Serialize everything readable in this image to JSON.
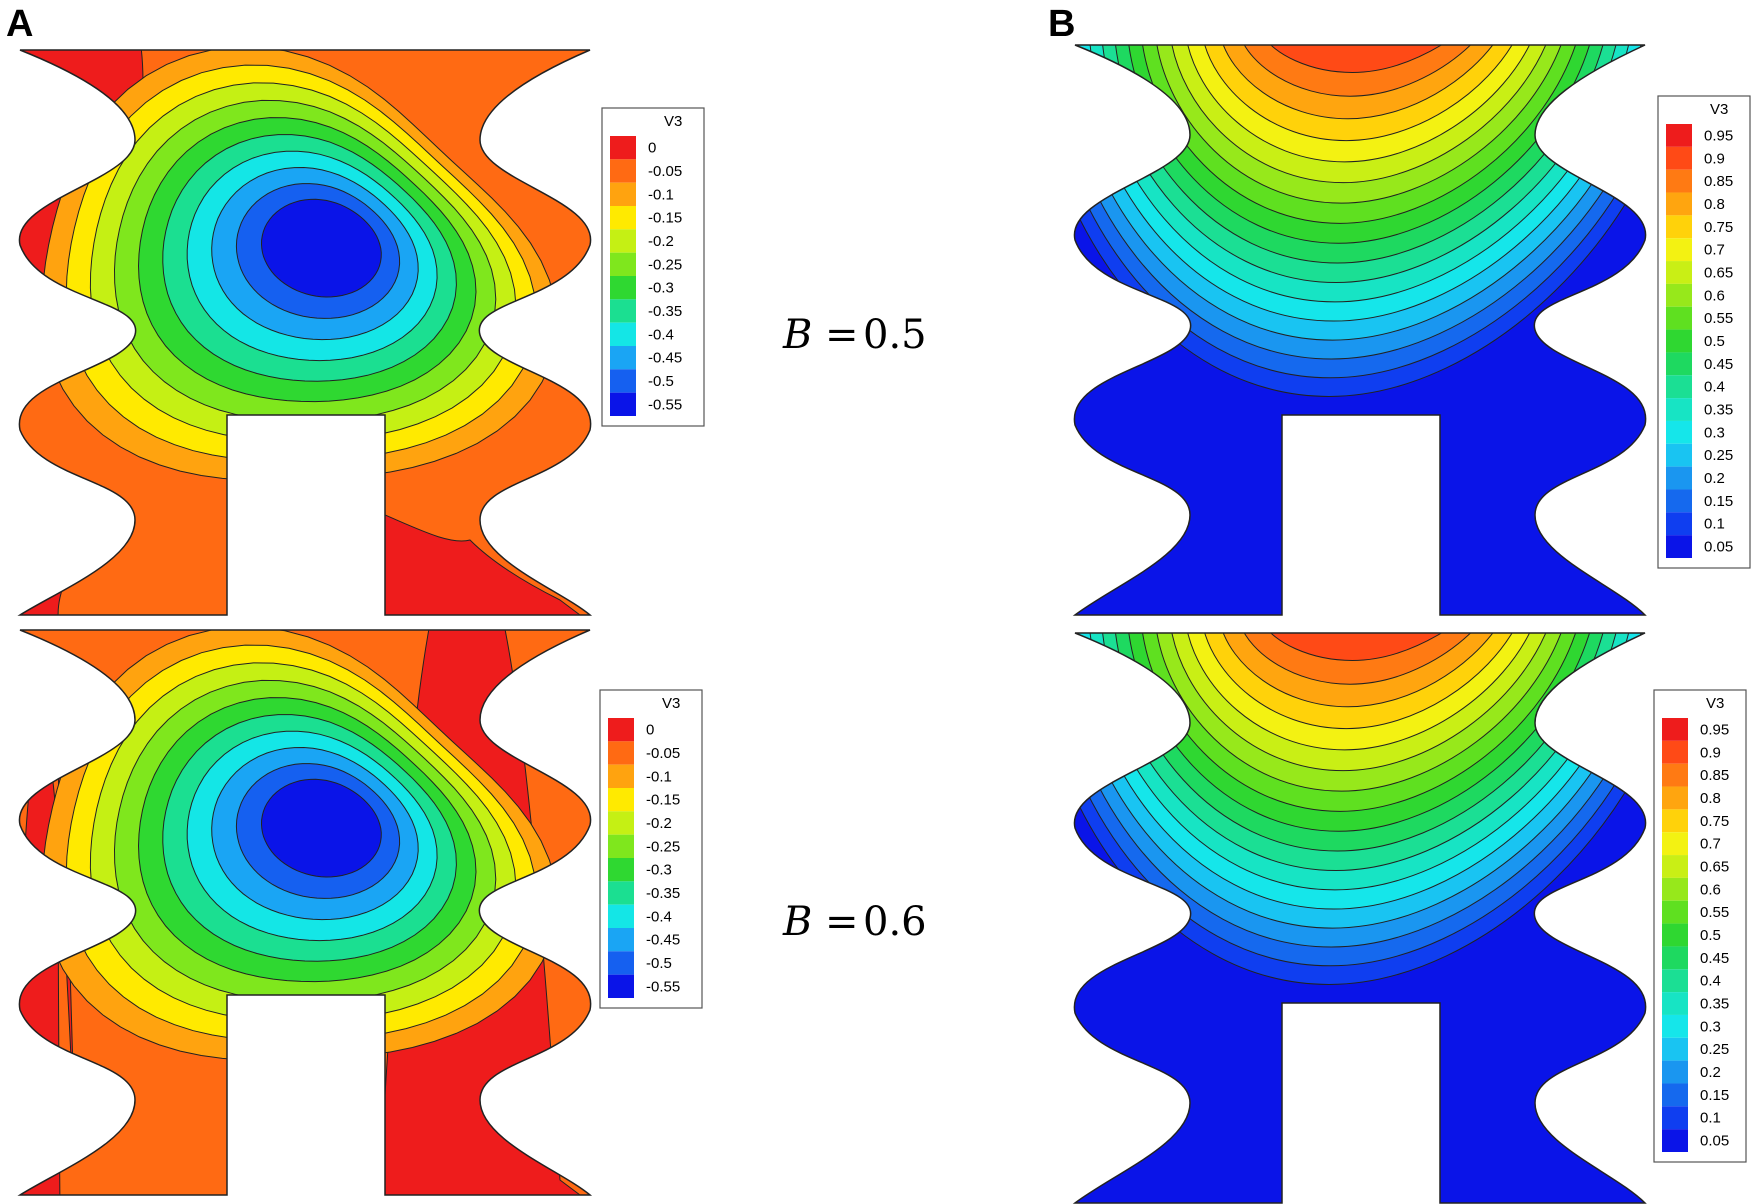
{
  "figure": {
    "panel_labels": [
      "A",
      "B"
    ],
    "row_labels": [
      {
        "symbol": "B",
        "equals": "=",
        "value": "0.5"
      },
      {
        "symbol": "B",
        "equals": "=",
        "value": "0.6"
      }
    ]
  },
  "legends": {
    "A": {
      "title": "V3",
      "levels": [
        "0",
        "-0.05",
        "-0.1",
        "-0.15",
        "-0.2",
        "-0.25",
        "-0.3",
        "-0.35",
        "-0.4",
        "-0.45",
        "-0.5",
        "-0.55"
      ],
      "colors": [
        "#ee1c1c",
        "#ff6a13",
        "#ffa30f",
        "#ffea00",
        "#c5f014",
        "#7fe71d",
        "#2fd831",
        "#1bdf91",
        "#14e6e6",
        "#1aa5f4",
        "#1560f0",
        "#0a14e8"
      ]
    },
    "B": {
      "title": "V3",
      "levels": [
        "0.95",
        "0.9",
        "0.85",
        "0.8",
        "0.75",
        "0.7",
        "0.65",
        "0.6",
        "0.55",
        "0.5",
        "0.45",
        "0.4",
        "0.35",
        "0.3",
        "0.25",
        "0.2",
        "0.15",
        "0.1",
        "0.05"
      ],
      "colors": [
        "#ee1c1c",
        "#ff4a16",
        "#ff7a13",
        "#ffa50f",
        "#ffd20a",
        "#f3f212",
        "#c9ef15",
        "#97e81b",
        "#5fe020",
        "#2fd731",
        "#1ed960",
        "#1bdf94",
        "#17e4c4",
        "#15e6ea",
        "#19c4f2",
        "#1a96f0",
        "#1569ee",
        "#0f3ef0",
        "#0a14e8"
      ]
    }
  }
}
